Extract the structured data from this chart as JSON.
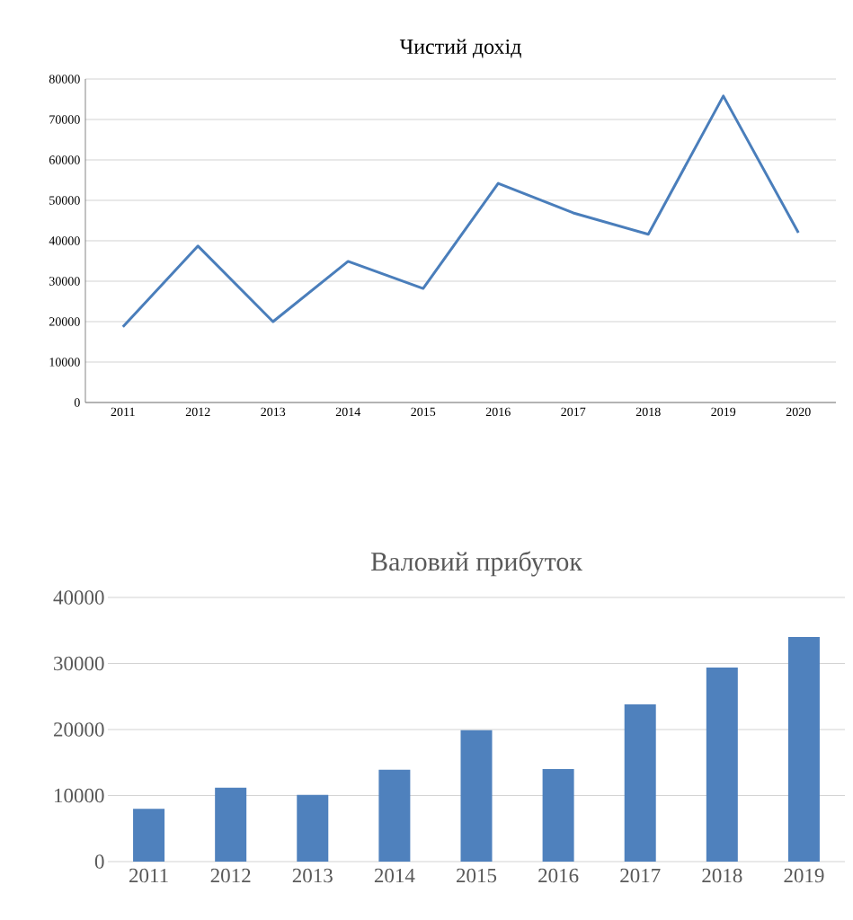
{
  "chart_data": [
    {
      "type": "line",
      "title": "Чистий дохід",
      "categories": [
        "2011",
        "2012",
        "2013",
        "2014",
        "2015",
        "2016",
        "2017",
        "2018",
        "2019",
        "2020"
      ],
      "values": [
        18700,
        38700,
        20000,
        34900,
        28200,
        54200,
        46900,
        41600,
        75800,
        42000
      ],
      "color": "#4a7ebb",
      "ylim": [
        0,
        80000
      ],
      "yticks": [
        0,
        10000,
        20000,
        30000,
        40000,
        50000,
        60000,
        70000,
        80000
      ],
      "grid": "y"
    },
    {
      "type": "bar",
      "title": "Валовий прибуток",
      "categories": [
        "2011",
        "2012",
        "2013",
        "2014",
        "2015",
        "2016",
        "2017",
        "2018",
        "2019"
      ],
      "values": [
        8000,
        11200,
        10100,
        13900,
        19900,
        14000,
        23800,
        29400,
        34000
      ],
      "color": "#4f81bd",
      "ylim": [
        0,
        40000
      ],
      "yticks": [
        0,
        10000,
        20000,
        30000,
        40000
      ],
      "grid": "y"
    }
  ]
}
